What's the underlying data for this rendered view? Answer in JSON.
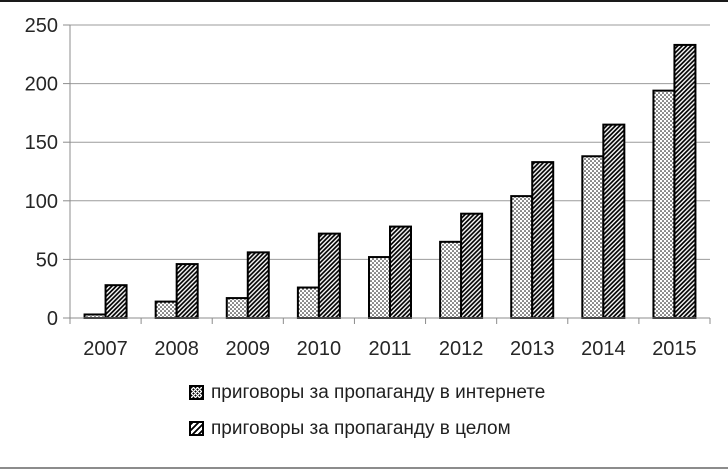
{
  "chart_data": {
    "type": "bar",
    "title": "",
    "categories": [
      "2007",
      "2008",
      "2009",
      "2010",
      "2011",
      "2012",
      "2013",
      "2014",
      "2015"
    ],
    "series": [
      {
        "name": "приговоры за пропаганду в интернете",
        "pattern": "dots",
        "values": [
          3,
          14,
          17,
          26,
          52,
          65,
          104,
          138,
          194
        ]
      },
      {
        "name": "приговоры за пропаганду в целом",
        "pattern": "diagonal-hatch",
        "values": [
          28,
          46,
          56,
          72,
          78,
          89,
          133,
          165,
          233
        ]
      }
    ],
    "xlabel": "",
    "ylabel": "",
    "ylim": [
      0,
      250
    ],
    "y_ticks": [
      0,
      50,
      100,
      150,
      200,
      250
    ],
    "grid": true,
    "legend_position": "bottom",
    "colors": {
      "bar_fill": "#ffffff",
      "bar_stroke": "#000000",
      "gridline": "#9b9b9b",
      "axis": "#8c8c8c",
      "text": "#262626",
      "frame_top": "#1a1a1a",
      "frame_bottom": "#8c8c8c"
    }
  }
}
